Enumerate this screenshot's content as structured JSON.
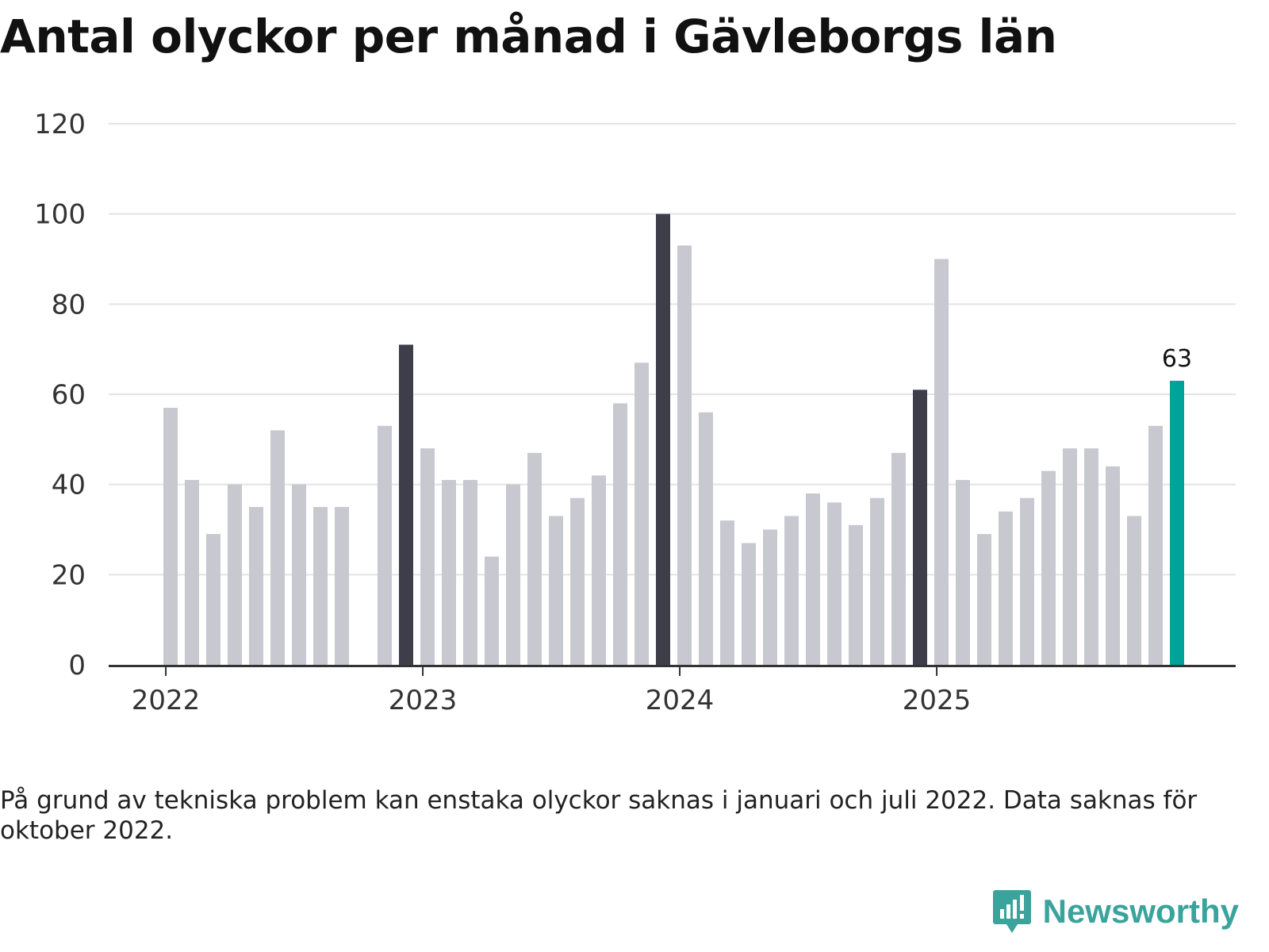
{
  "title": "Antal olyckor per månad i Gävleborgs län",
  "note": "På grund av tekniska problem kan enstaka olyckor saknas i januari och juli 2022. Data saknas för oktober 2022.",
  "brand": {
    "name": "Newsworthy",
    "color": "#3aa39b"
  },
  "colors": {
    "default": "#c8c8d0",
    "highlight": "#3e3e4a",
    "latest": "#00a39a",
    "grid": "#e3e3e3",
    "axis": "#333333"
  },
  "chart_data": {
    "type": "bar",
    "title": "Antal olyckor per månad i Gävleborgs län",
    "xlabel": "",
    "ylabel": "",
    "ylim": [
      0,
      120
    ],
    "yticks": [
      "0",
      "20",
      "40",
      "60",
      "80",
      "100",
      "120"
    ],
    "xticks": [
      {
        "label": "2022",
        "index": 0
      },
      {
        "label": "2023",
        "index": 12
      },
      {
        "label": "2024",
        "index": 24
      },
      {
        "label": "2025",
        "index": 36
      }
    ],
    "categories": [
      "2022-01",
      "2022-02",
      "2022-03",
      "2022-04",
      "2022-05",
      "2022-06",
      "2022-07",
      "2022-08",
      "2022-09",
      "2022-10",
      "2022-11",
      "2022-12",
      "2023-01",
      "2023-02",
      "2023-03",
      "2023-04",
      "2023-05",
      "2023-06",
      "2023-07",
      "2023-08",
      "2023-09",
      "2023-10",
      "2023-11",
      "2023-12",
      "2024-01",
      "2024-02",
      "2024-03",
      "2024-04",
      "2024-05",
      "2024-06",
      "2024-07",
      "2024-08",
      "2024-09",
      "2024-10",
      "2024-11",
      "2024-12",
      "2025-01",
      "2025-02",
      "2025-03",
      "2025-04",
      "2025-05",
      "2025-06",
      "2025-07",
      "2025-08",
      "2025-09",
      "2025-10",
      "2025-11",
      "2025-12"
    ],
    "values": [
      57,
      41,
      29,
      40,
      35,
      52,
      40,
      35,
      35,
      null,
      53,
      71,
      48,
      41,
      41,
      24,
      40,
      47,
      33,
      37,
      42,
      58,
      67,
      100,
      93,
      56,
      32,
      27,
      30,
      33,
      38,
      36,
      31,
      37,
      47,
      61,
      90,
      41,
      29,
      34,
      37,
      43,
      48,
      48,
      44,
      33,
      53,
      63
    ],
    "highlight": [
      11,
      23,
      35
    ],
    "latest": 47,
    "annotations": [
      {
        "index": 47,
        "text": "63"
      }
    ]
  }
}
